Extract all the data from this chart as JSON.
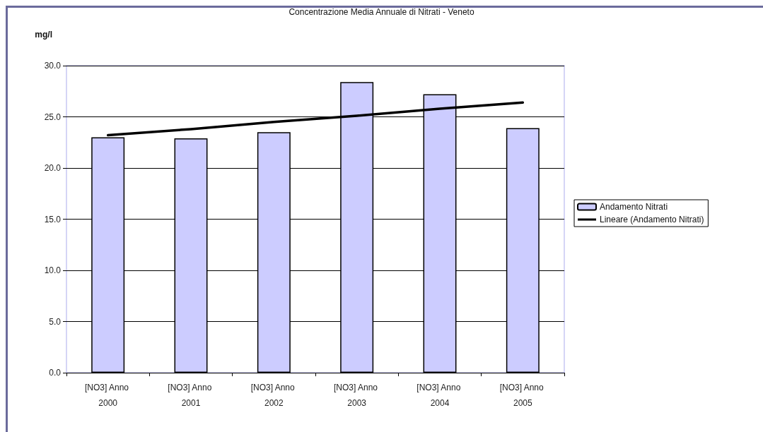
{
  "chart_data": {
    "type": "bar",
    "title": "Concentrazione Media Annuale di Nitrati - Veneto",
    "ylabel": "mg/l",
    "categories": [
      "[NO3] Anno 2000",
      "[NO3] Anno 2001",
      "[NO3] Anno 2002",
      "[NO3] Anno 2003",
      "[NO3] Anno 2004",
      "[NO3] Anno 2005"
    ],
    "series": [
      {
        "name": "Andamento Nitrati",
        "color": "#ccccff",
        "values": [
          23.0,
          22.9,
          23.5,
          28.4,
          27.2,
          23.9
        ]
      },
      {
        "name": "Lineare (Andamento Nitrati)",
        "type": "line",
        "color": "#000000",
        "values": [
          23.2,
          23.8,
          24.5,
          25.1,
          25.8,
          26.4
        ]
      }
    ],
    "ylim": [
      0,
      30
    ],
    "yticks": [
      {
        "value": 0,
        "label": "0.0"
      },
      {
        "value": 5,
        "label": "5.0"
      },
      {
        "value": 10,
        "label": "10.0"
      },
      {
        "value": 15,
        "label": "15.0"
      },
      {
        "value": 20,
        "label": "20.0"
      },
      {
        "value": 25,
        "label": "25.0"
      },
      {
        "value": 30,
        "label": "30.0"
      }
    ],
    "grid": "y",
    "legend": "right",
    "marker": "none"
  }
}
